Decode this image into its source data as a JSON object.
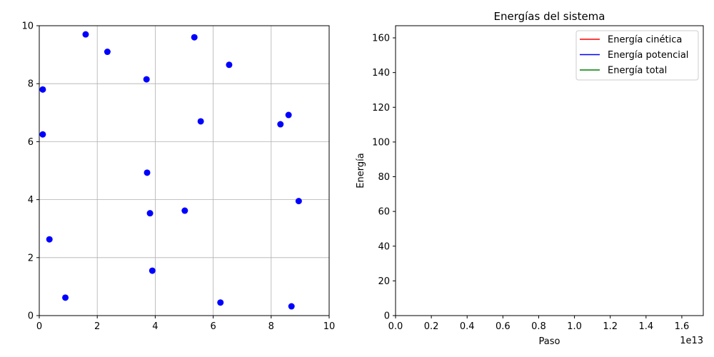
{
  "chart_data": [
    {
      "type": "scatter",
      "title": "",
      "xlabel": "",
      "ylabel": "",
      "xlim": [
        0,
        10
      ],
      "ylim": [
        0,
        10
      ],
      "xticks": [
        "0",
        "2",
        "4",
        "6",
        "8",
        "10"
      ],
      "yticks": [
        "0",
        "2",
        "4",
        "6",
        "8",
        "10"
      ],
      "grid": true,
      "marker_color": "#0000ff",
      "points": [
        [
          1.6,
          9.7
        ],
        [
          2.35,
          9.1
        ],
        [
          5.35,
          9.6
        ],
        [
          6.55,
          8.65
        ],
        [
          3.7,
          8.15
        ],
        [
          0.12,
          7.8
        ],
        [
          8.6,
          6.92
        ],
        [
          8.32,
          6.6
        ],
        [
          5.57,
          6.7
        ],
        [
          0.12,
          6.25
        ],
        [
          3.72,
          4.93
        ],
        [
          8.95,
          3.95
        ],
        [
          5.02,
          3.62
        ],
        [
          3.82,
          3.53
        ],
        [
          0.35,
          2.63
        ],
        [
          3.9,
          1.55
        ],
        [
          0.9,
          0.62
        ],
        [
          6.25,
          0.45
        ],
        [
          8.7,
          0.32
        ]
      ]
    },
    {
      "type": "line",
      "title": "Energías del sistema",
      "xlabel": "Paso",
      "ylabel": "Energía",
      "x_offset_label": "1e13",
      "xlim": [
        0,
        1.72
      ],
      "ylim": [
        0,
        167
      ],
      "xticks": [
        "0.0",
        "0.2",
        "0.4",
        "0.6",
        "0.8",
        "1.0",
        "1.2",
        "1.4",
        "1.6"
      ],
      "yticks": [
        "0",
        "20",
        "40",
        "60",
        "80",
        "100",
        "120",
        "140",
        "160"
      ],
      "grid": false,
      "legend_position": "upper-right",
      "series": [
        {
          "name": "Energía cinética",
          "color": "#ff0000",
          "values": []
        },
        {
          "name": "Energía potencial",
          "color": "#0000ff",
          "values": []
        },
        {
          "name": "Energía total",
          "color": "#008000",
          "values": []
        }
      ]
    }
  ]
}
